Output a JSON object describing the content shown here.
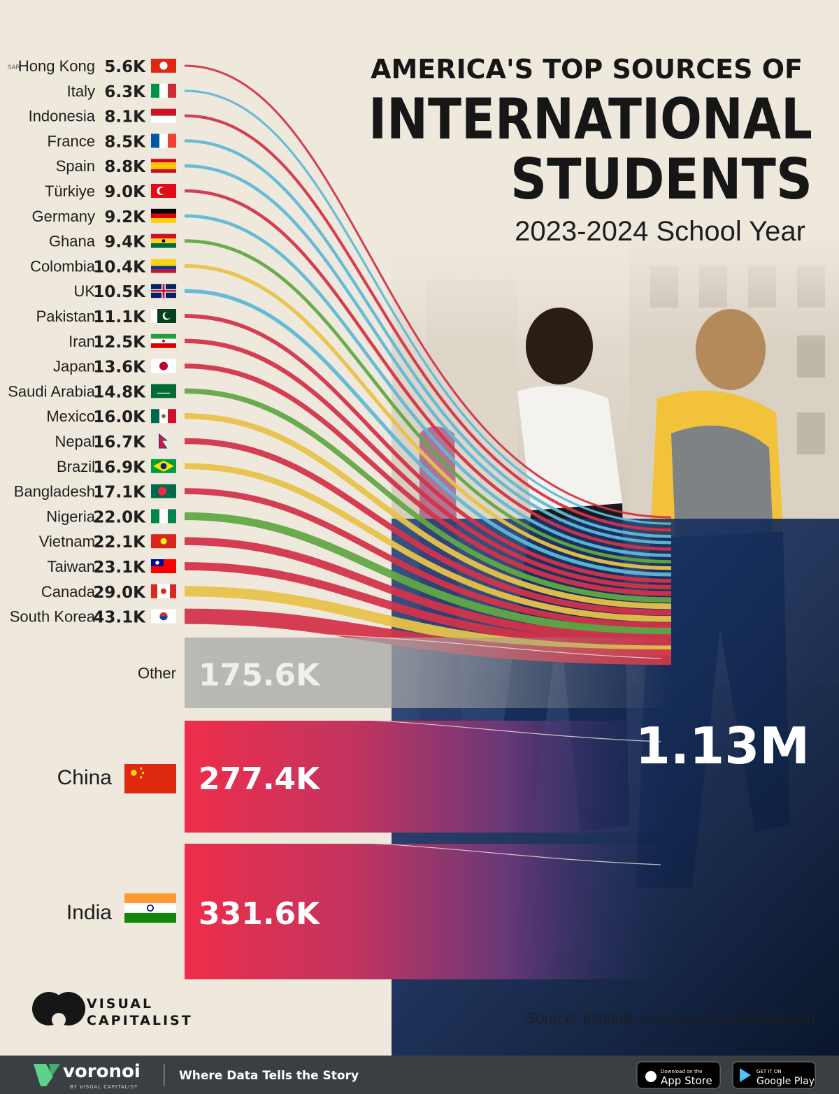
{
  "header": {
    "title_line1": "AMERICA'S TOP SOURCES OF",
    "title_line2": "INTERNATIONAL",
    "title_line3": "STUDENTS",
    "subtitle": "2023-2024 School Year"
  },
  "chart_data": {
    "type": "bar",
    "title": "AMERICA'S TOP SOURCES OF INTERNATIONAL STUDENTS",
    "subtitle": "2023-2024 School Year",
    "unit": "students (thousands)",
    "total_label": "1.13M",
    "total": 1130000,
    "countries": [
      {
        "name": "Hong Kong",
        "prefix": "SAR",
        "label": "5.6K",
        "value": 5600,
        "color": "#d2344a",
        "flag": "hong-kong"
      },
      {
        "name": "Italy",
        "label": "6.3K",
        "value": 6300,
        "color": "#5fb8d6",
        "flag": "italy"
      },
      {
        "name": "Indonesia",
        "label": "8.1K",
        "value": 8100,
        "color": "#d2344a",
        "flag": "indonesia"
      },
      {
        "name": "France",
        "label": "8.5K",
        "value": 8500,
        "color": "#5fb8d6",
        "flag": "france"
      },
      {
        "name": "Spain",
        "label": "8.8K",
        "value": 8800,
        "color": "#5fb8d6",
        "flag": "spain"
      },
      {
        "name": "Türkiye",
        "label": "9.0K",
        "value": 9000,
        "color": "#d2344a",
        "flag": "turkiye"
      },
      {
        "name": "Germany",
        "label": "9.2K",
        "value": 9200,
        "color": "#5fb8d6",
        "flag": "germany"
      },
      {
        "name": "Ghana",
        "label": "9.4K",
        "value": 9400,
        "color": "#62a845",
        "flag": "ghana"
      },
      {
        "name": "Colombia",
        "label": "10.4K",
        "value": 10400,
        "color": "#e7c24a",
        "flag": "colombia"
      },
      {
        "name": "UK",
        "label": "10.5K",
        "value": 10500,
        "color": "#5fb8d6",
        "flag": "uk"
      },
      {
        "name": "Pakistan",
        "label": "11.1K",
        "value": 11100,
        "color": "#d2344a",
        "flag": "pakistan"
      },
      {
        "name": "Iran",
        "label": "12.5K",
        "value": 12500,
        "color": "#d2344a",
        "flag": "iran"
      },
      {
        "name": "Japan",
        "label": "13.6K",
        "value": 13600,
        "color": "#d2344a",
        "flag": "japan"
      },
      {
        "name": "Saudi Arabia",
        "label": "14.8K",
        "value": 14800,
        "color": "#62a845",
        "flag": "saudi-arabia"
      },
      {
        "name": "Mexico",
        "label": "16.0K",
        "value": 16000,
        "color": "#e7c24a",
        "flag": "mexico"
      },
      {
        "name": "Nepal",
        "label": "16.7K",
        "value": 16700,
        "color": "#d2344a",
        "flag": "nepal"
      },
      {
        "name": "Brazil",
        "label": "16.9K",
        "value": 16900,
        "color": "#e7c24a",
        "flag": "brazil"
      },
      {
        "name": "Bangladesh",
        "label": "17.1K",
        "value": 17100,
        "color": "#d2344a",
        "flag": "bangladesh"
      },
      {
        "name": "Nigeria",
        "label": "22.0K",
        "value": 22000,
        "color": "#62a845",
        "flag": "nigeria"
      },
      {
        "name": "Vietnam",
        "label": "22.1K",
        "value": 22100,
        "color": "#d2344a",
        "flag": "vietnam"
      },
      {
        "name": "Taiwan",
        "label": "23.1K",
        "value": 23100,
        "color": "#d2344a",
        "flag": "taiwan"
      },
      {
        "name": "Canada",
        "label": "29.0K",
        "value": 29000,
        "color": "#e7c24a",
        "flag": "canada"
      },
      {
        "name": "South Korea",
        "label": "43.1K",
        "value": 43100,
        "color": "#d2344a",
        "flag": "south-korea"
      }
    ],
    "large": [
      {
        "name": "Other",
        "label": "175.6K",
        "value": 175600,
        "color": "#b9b9b6"
      },
      {
        "name": "China",
        "label": "277.4K",
        "value": 277400,
        "color": "#ee2e4a",
        "flag": "china"
      },
      {
        "name": "India",
        "label": "331.6K",
        "value": 331600,
        "color": "#ee2e4a",
        "flag": "india"
      }
    ]
  },
  "source": "Source: Institute of International Education",
  "brand": {
    "name_line1": "VISUAL",
    "name_line2": "CAPITALIST"
  },
  "footer": {
    "brand": "voronoi",
    "brand_sub": "BY VISUAL CAPITALIST",
    "tagline": "Where Data Tells the Story",
    "appstore_small": "Download on the",
    "appstore_big": "App Store",
    "gplay_small": "GET IT ON",
    "gplay_big": "Google Play"
  }
}
